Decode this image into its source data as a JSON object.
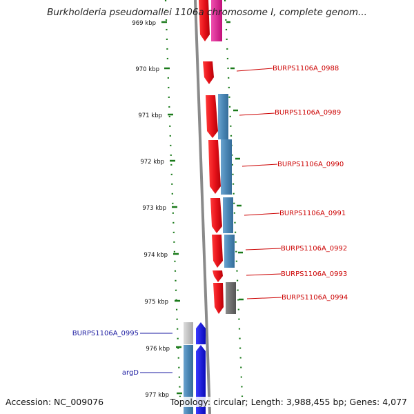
{
  "header": {
    "title": "Burkholderia pseudomallei 1106a chromosome I, complete genom..."
  },
  "footer": {
    "accession": "Accession: NC_009076",
    "genome_info": "Topology: circular; Length: 3,988,455 bp; Genes: 4,077"
  },
  "colors": {
    "backbone": "#8c8c8c",
    "ticks": "#1a7a1a",
    "forward_gene": "#e8141b",
    "cds_blue": "#4a86b5",
    "pseudo_gray": "#707070",
    "pink_gene": "#e0208a",
    "strand_blue": "#1a1ae0",
    "label_red": "#cc0000",
    "label_blue": "#1a1aa0"
  },
  "scale": {
    "unit": "kbp",
    "ticks": [
      "969 kbp",
      "970 kbp",
      "971 kbp",
      "972 kbp",
      "973 kbp",
      "974 kbp",
      "975 kbp",
      "976 kbp",
      "977 kbp"
    ]
  },
  "genes": [
    {
      "label": "BURPS1106A_0988",
      "strand": "forward"
    },
    {
      "label": "BURPS1106A_0989",
      "strand": "forward"
    },
    {
      "label": "BURPS1106A_0990",
      "strand": "forward"
    },
    {
      "label": "BURPS1106A_0991",
      "strand": "forward"
    },
    {
      "label": "BURPS1106A_0992",
      "strand": "forward"
    },
    {
      "label": "BURPS1106A_0993",
      "strand": "forward"
    },
    {
      "label": "BURPS1106A_0994",
      "strand": "forward"
    },
    {
      "label": "BURPS1106A_0995",
      "strand": "reverse"
    },
    {
      "label": "argD",
      "strand": "reverse"
    }
  ]
}
